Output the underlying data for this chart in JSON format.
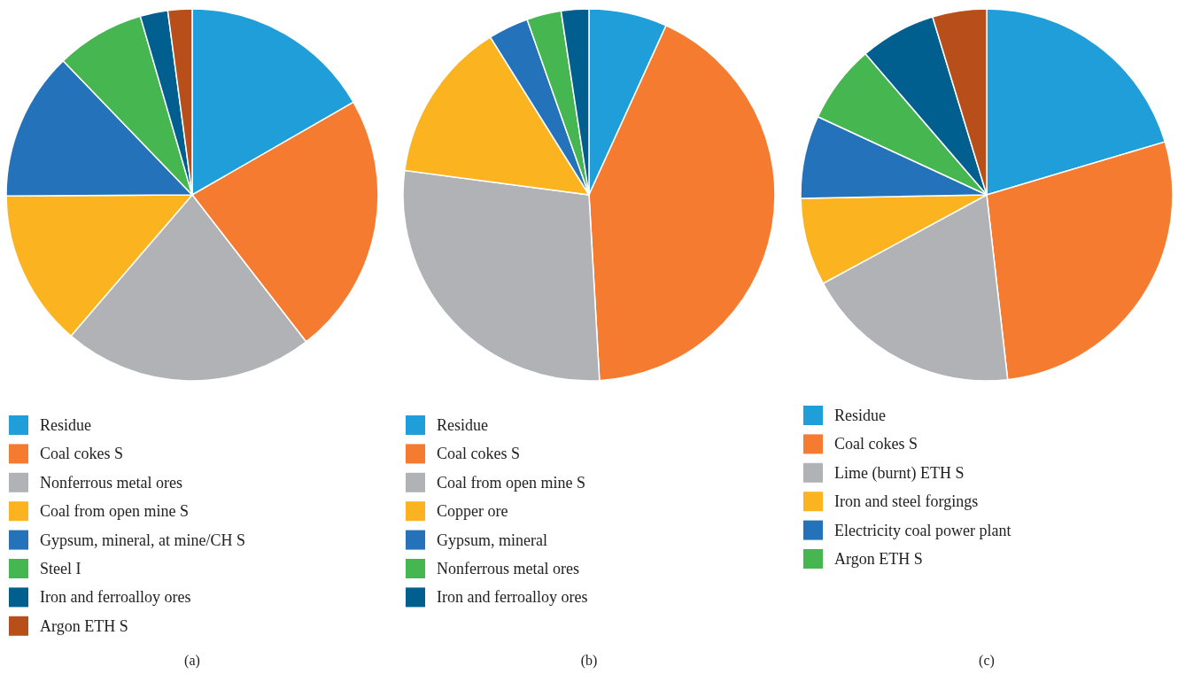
{
  "chart_data": [
    {
      "type": "pie",
      "title": "(a)",
      "legend": "bottom",
      "categories": [
        "Residue",
        "Coal cokes S",
        "Nonferrous metal ores",
        "Coal from open mine S",
        "Gypsum, mineral, at mine/CH S",
        "Steel I",
        "Iron and ferroalloy ores",
        "Argon ETH S"
      ],
      "values": [
        16.7,
        22.8,
        21.8,
        13.6,
        12.9,
        7.7,
        2.4,
        2.1
      ],
      "colors": [
        "#1f9ed9",
        "#f47b30",
        "#b1b2b5",
        "#fbb41f",
        "#2372ba",
        "#45b650",
        "#005f8f",
        "#b84f1a"
      ]
    },
    {
      "type": "pie",
      "title": "(b)",
      "legend": "bottom",
      "categories": [
        "Residue",
        "Coal cokes S",
        "Coal from open mine S",
        "Copper ore",
        "Gypsum, mineral",
        "Nonferrous metal ores",
        "Iron and ferroalloy ores"
      ],
      "values": [
        6.8,
        42.3,
        28.0,
        14.0,
        3.5,
        3.0,
        2.4
      ],
      "colors": [
        "#1f9ed9",
        "#f47b30",
        "#b1b2b5",
        "#fbb41f",
        "#2372ba",
        "#45b650",
        "#005f8f"
      ]
    },
    {
      "type": "pie",
      "title": "(c)",
      "legend": "bottom",
      "categories": [
        "Residue",
        "Coal cokes S",
        "Lime (burnt) ETH S",
        "Iron and steel forgings",
        "Electricity coal power plant",
        "Argon ETH S",
        null,
        null
      ],
      "values": [
        20.4,
        27.8,
        18.9,
        7.6,
        7.2,
        6.8,
        6.6,
        4.7
      ],
      "colors": [
        "#1f9ed9",
        "#f47b30",
        "#b1b2b5",
        "#fbb41f",
        "#2372ba",
        "#45b650",
        "#005f8f",
        "#b84f1a"
      ]
    }
  ]
}
